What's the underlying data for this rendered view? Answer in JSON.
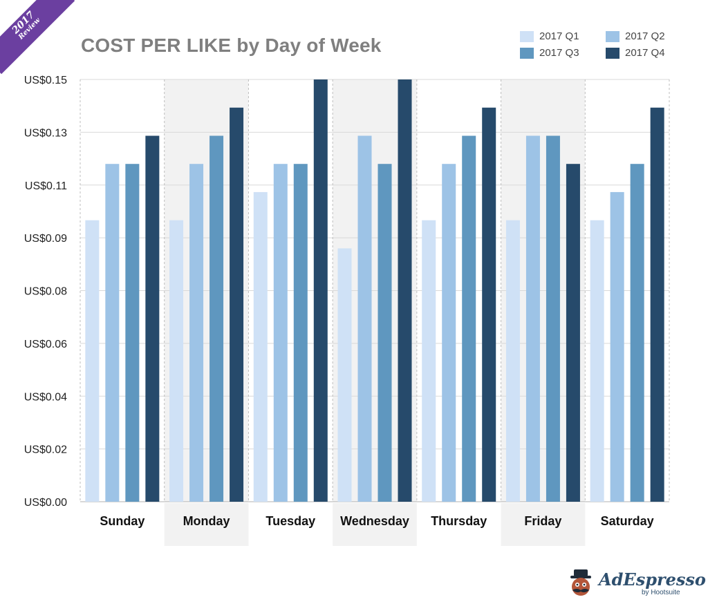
{
  "badge": {
    "year": "2017",
    "label": "Review"
  },
  "legend": [
    {
      "label": "2017 Q1",
      "color": "#cfe1f6"
    },
    {
      "label": "2017 Q2",
      "color": "#9dc3e6"
    },
    {
      "label": "2017 Q3",
      "color": "#5f97bf"
    },
    {
      "label": "2017 Q4",
      "color": "#264a6b"
    }
  ],
  "logo": {
    "name": "AdEspresso",
    "byline": "by Hootsuite"
  },
  "chart_data": {
    "type": "bar",
    "title": "COST PER LIKE by Day of Week",
    "xlabel": "",
    "ylabel": "",
    "categories": [
      "Sunday",
      "Monday",
      "Tuesday",
      "Wednesday",
      "Thursday",
      "Friday",
      "Saturday"
    ],
    "y_tick_labels": [
      "US$0.00",
      "US$0.02",
      "US$0.04",
      "US$0.06",
      "US$0.08",
      "US$0.09",
      "US$0.11",
      "US$0.13",
      "US$0.15"
    ],
    "ylim": [
      0,
      0.15
    ],
    "series": [
      {
        "name": "2017 Q1",
        "color": "#cfe1f6",
        "values": [
          0.1,
          0.1,
          0.11,
          0.09,
          0.1,
          0.1,
          0.1
        ]
      },
      {
        "name": "2017 Q2",
        "color": "#9dc3e6",
        "values": [
          0.12,
          0.12,
          0.12,
          0.13,
          0.12,
          0.13,
          0.11
        ]
      },
      {
        "name": "2017 Q3",
        "color": "#5f97bf",
        "values": [
          0.12,
          0.13,
          0.12,
          0.12,
          0.13,
          0.13,
          0.12
        ]
      },
      {
        "name": "2017 Q4",
        "color": "#264a6b",
        "values": [
          0.13,
          0.14,
          0.15,
          0.15,
          0.14,
          0.12,
          0.14
        ]
      }
    ],
    "shaded_categories": [
      "Monday",
      "Wednesday",
      "Friday"
    ],
    "legend_position": "top-right"
  }
}
